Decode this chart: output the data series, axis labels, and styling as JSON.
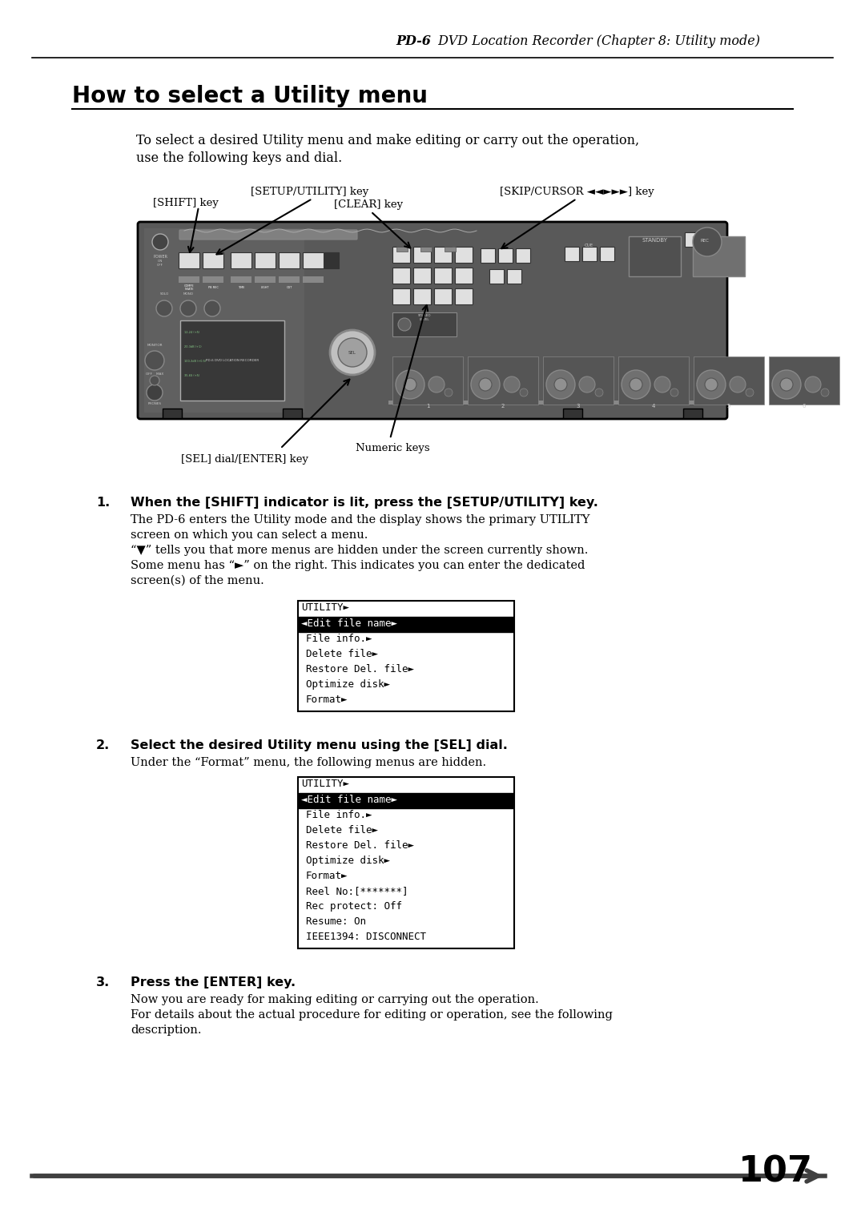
{
  "page_title_bold": "PD-6",
  "page_title_rest": " DVD Location Recorder (Chapter 8: Utility mode)",
  "section_title": "How to select a Utility menu",
  "intro_line1": "To select a desired Utility menu and make editing or carry out the operation,",
  "intro_line2": "use the following keys and dial.",
  "label_shift": "[SHIFT] key",
  "label_setup": "[SETUP/UTILITY] key",
  "label_clear": "[CLEAR] key",
  "label_skip": "[SKIP/CURSOR ◄◄►►►] key",
  "label_numeric": "Numeric keys",
  "label_sel": "[SEL] dial/[ENTER] key",
  "step1_bold": "When the [SHIFT] indicator is lit, press the [SETUP/UTILITY] key.",
  "step1_lines": [
    "The PD-6 enters the Utility mode and the display shows the primary UTILITY",
    "screen on which you can select a menu.",
    "“▼” tells you that more menus are hidden under the screen currently shown.",
    "Some menu has “►” on the right. This indicates you can enter the dedicated",
    "screen(s) of the menu."
  ],
  "menu1_title": "UTILITY►",
  "menu1_items": [
    "◄Edit file name►",
    "File info.►",
    "Delete file►",
    "Restore Del. file►",
    "Optimize disk►",
    "Format►"
  ],
  "step2_bold": "Select the desired Utility menu using the [SEL] dial.",
  "step2_body": "Under the “Format” menu, the following menus are hidden.",
  "menu2_title": "UTILITY►",
  "menu2_items": [
    "◄Edit file name►",
    "File info.►",
    "Delete file►",
    "Restore Del. file►",
    "Optimize disk►",
    "Format►",
    "Reel No:[*******]",
    "Rec protect: Off",
    "Resume: On",
    "IEEE1394: DISCONNECT"
  ],
  "step3_bold": "Press the [ENTER] key.",
  "step3_lines": [
    "Now you are ready for making editing or carrying out the operation.",
    "For details about the actual procedure for editing or operation, see the following",
    "description."
  ],
  "page_number": "107"
}
